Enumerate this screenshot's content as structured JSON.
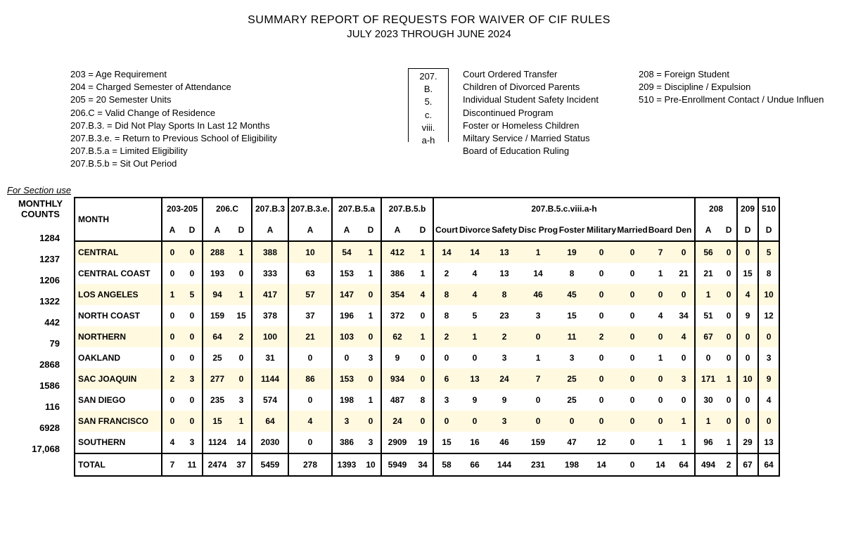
{
  "title": "SUMMARY REPORT OF REQUESTS FOR WAIVER OF CIF RULES",
  "subtitle": "JULY 2023 THROUGH JUNE 2024",
  "legend_left": [
    "203 = Age Requirement",
    "204 = Charged Semester of Attendance",
    "205 = 20 Semester Units",
    "206.C = Valid Change of Residence",
    "207.B.3. = Did Not Play Sports In Last 12 Months",
    "207.B.3.e. = Return to Previous School of Eligibility",
    "207.B.5.a = Limited Eligibility",
    "207.B.5.b = Sit Out Period"
  ],
  "legend_box": [
    "207.",
    "B.",
    "5.",
    "c.",
    "viii.",
    "a-h"
  ],
  "legend_mid": [
    "Court Ordered Transfer",
    "Children of Divorced Parents",
    "Individual Student Safety Incident",
    "Discontinued Program",
    "Foster or Homeless Children",
    "Miltary Service / Married Status",
    "Board of Education Ruling"
  ],
  "legend_right": [
    "208 = Foreign Student",
    "209 = Discipline / Expulsion",
    "510 = Pre-Enrollment Contact / Undue Influen"
  ],
  "section_use": "For Section use",
  "monthly_counts_label": [
    "MONTHLY",
    "COUNTS"
  ],
  "headers": {
    "month": "MONTH",
    "g203": "203-205",
    "g206": "206.C",
    "g207b3": "207.B.3",
    "g207b3e": "207.B.3.e.",
    "g207b5a": "207.B.5.a",
    "g207b5b": "207.B.5.b",
    "g207viii": "207.B.5.c.viii.a-h",
    "g208": "208",
    "g209": "209",
    "g510": "510",
    "sub": {
      "A": "A",
      "D": "D",
      "court": "Court",
      "divorce": "Divorce",
      "safety": "Safety",
      "disc": "Disc Prog",
      "foster": "Foster",
      "military": "Military",
      "married": "Married",
      "board": "Board",
      "den": "Den"
    }
  },
  "rows": [
    {
      "count": "1284",
      "name": "CENTRAL",
      "c": [
        "0",
        "0",
        "288",
        "1",
        "388",
        "10",
        "54",
        "1",
        "412",
        "1",
        "14",
        "14",
        "13",
        "1",
        "19",
        "0",
        "0",
        "7",
        "0",
        "56",
        "0",
        "0",
        "5"
      ]
    },
    {
      "count": "1237",
      "name": "CENTRAL COAST",
      "c": [
        "0",
        "0",
        "193",
        "0",
        "333",
        "63",
        "153",
        "1",
        "386",
        "1",
        "2",
        "4",
        "13",
        "14",
        "8",
        "0",
        "0",
        "1",
        "21",
        "21",
        "0",
        "15",
        "8"
      ]
    },
    {
      "count": "1206",
      "name": "LOS ANGELES",
      "c": [
        "1",
        "5",
        "94",
        "1",
        "417",
        "57",
        "147",
        "0",
        "354",
        "4",
        "8",
        "4",
        "8",
        "46",
        "45",
        "0",
        "0",
        "0",
        "0",
        "1",
        "0",
        "4",
        "10"
      ]
    },
    {
      "count": "1322",
      "name": "NORTH COAST",
      "c": [
        "0",
        "0",
        "159",
        "15",
        "378",
        "37",
        "196",
        "1",
        "372",
        "0",
        "8",
        "5",
        "23",
        "3",
        "15",
        "0",
        "0",
        "4",
        "34",
        "51",
        "0",
        "9",
        "12"
      ]
    },
    {
      "count": "442",
      "name": "NORTHERN",
      "c": [
        "0",
        "0",
        "64",
        "2",
        "100",
        "21",
        "103",
        "0",
        "62",
        "1",
        "2",
        "1",
        "2",
        "0",
        "11",
        "2",
        "0",
        "0",
        "4",
        "67",
        "0",
        "0",
        "0"
      ]
    },
    {
      "count": "79",
      "name": "OAKLAND",
      "c": [
        "0",
        "0",
        "25",
        "0",
        "31",
        "0",
        "0",
        "3",
        "9",
        "0",
        "0",
        "0",
        "3",
        "1",
        "3",
        "0",
        "0",
        "1",
        "0",
        "0",
        "0",
        "0",
        "3"
      ]
    },
    {
      "count": "2868",
      "name": "SAC JOAQUIN",
      "c": [
        "2",
        "3",
        "277",
        "0",
        "1144",
        "86",
        "153",
        "0",
        "934",
        "0",
        "6",
        "13",
        "24",
        "7",
        "25",
        "0",
        "0",
        "0",
        "3",
        "171",
        "1",
        "10",
        "9"
      ]
    },
    {
      "count": "1586",
      "name": "SAN DIEGO",
      "c": [
        "0",
        "0",
        "235",
        "3",
        "574",
        "0",
        "198",
        "1",
        "487",
        "8",
        "3",
        "9",
        "9",
        "0",
        "25",
        "0",
        "0",
        "0",
        "0",
        "30",
        "0",
        "0",
        "4"
      ]
    },
    {
      "count": "116",
      "name": "SAN FRANCISCO",
      "c": [
        "0",
        "0",
        "15",
        "1",
        "64",
        "4",
        "3",
        "0",
        "24",
        "0",
        "0",
        "0",
        "3",
        "0",
        "0",
        "0",
        "0",
        "0",
        "1",
        "1",
        "0",
        "0",
        "0"
      ]
    },
    {
      "count": "6928",
      "name": "SOUTHERN",
      "c": [
        "4",
        "3",
        "1124",
        "14",
        "2030",
        "0",
        "386",
        "3",
        "2909",
        "19",
        "15",
        "16",
        "46",
        "159",
        "47",
        "12",
        "0",
        "1",
        "1",
        "96",
        "1",
        "29",
        "13"
      ]
    }
  ],
  "total": {
    "count": "17,068",
    "name": "TOTAL",
    "c": [
      "7",
      "11",
      "2474",
      "37",
      "5459",
      "278",
      "1393",
      "10",
      "5949",
      "34",
      "58",
      "66",
      "144",
      "231",
      "198",
      "14",
      "0",
      "14",
      "64",
      "494",
      "2",
      "67",
      "64"
    ]
  }
}
